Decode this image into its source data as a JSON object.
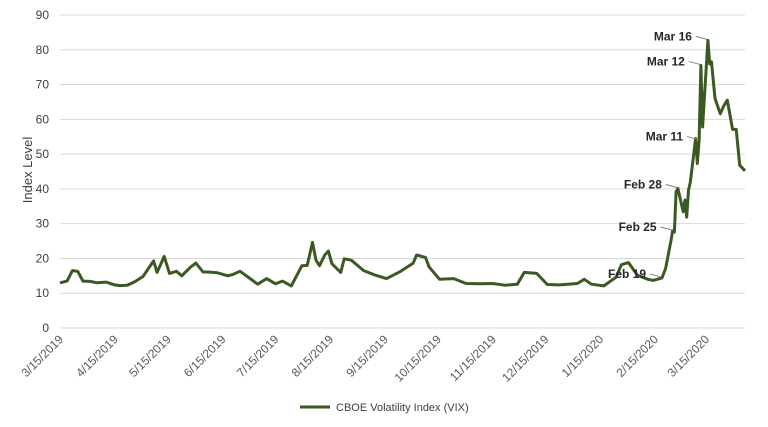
{
  "chart_data": {
    "type": "line",
    "ylabel": "Index Level",
    "xlabel": "",
    "ylim": [
      0,
      90
    ],
    "yticks": [
      0,
      10,
      20,
      30,
      40,
      50,
      60,
      70,
      80,
      90
    ],
    "grid": "horizontal",
    "legend_position": "bottom",
    "color": "#3b5a23",
    "x_ticks": [
      "3/15/2019",
      "4/15/2019",
      "5/15/2019",
      "6/15/2019",
      "7/15/2019",
      "8/15/2019",
      "9/15/2019",
      "10/15/2019",
      "11/15/2019",
      "12/15/2019",
      "1/15/2020",
      "2/15/2020",
      "3/15/2020"
    ],
    "series": [
      {
        "name": "CBOE Volatility Index (VIX)",
        "x": [
          "2019-03-15",
          "2019-03-19",
          "2019-03-22",
          "2019-03-25",
          "2019-03-28",
          "2019-04-01",
          "2019-04-05",
          "2019-04-10",
          "2019-04-15",
          "2019-04-18",
          "2019-04-22",
          "2019-04-26",
          "2019-05-01",
          "2019-05-07",
          "2019-05-09",
          "2019-05-13",
          "2019-05-16",
          "2019-05-20",
          "2019-05-23",
          "2019-05-28",
          "2019-05-31",
          "2019-06-04",
          "2019-06-07",
          "2019-06-12",
          "2019-06-18",
          "2019-06-21",
          "2019-06-25",
          "2019-07-01",
          "2019-07-05",
          "2019-07-10",
          "2019-07-15",
          "2019-07-19",
          "2019-07-24",
          "2019-07-30",
          "2019-08-02",
          "2019-08-05",
          "2019-08-07",
          "2019-08-09",
          "2019-08-12",
          "2019-08-14",
          "2019-08-16",
          "2019-08-21",
          "2019-08-23",
          "2019-08-27",
          "2019-09-03",
          "2019-09-09",
          "2019-09-16",
          "2019-09-24",
          "2019-10-01",
          "2019-10-03",
          "2019-10-08",
          "2019-10-10",
          "2019-10-16",
          "2019-10-24",
          "2019-10-31",
          "2019-11-08",
          "2019-11-15",
          "2019-11-22",
          "2019-11-29",
          "2019-12-03",
          "2019-12-10",
          "2019-12-16",
          "2019-12-23",
          "2020-01-02",
          "2020-01-06",
          "2020-01-10",
          "2020-01-17",
          "2020-01-24",
          "2020-01-27",
          "2020-01-31",
          "2020-02-05",
          "2020-02-11",
          "2020-02-14",
          "2020-02-19",
          "2020-02-21",
          "2020-02-24",
          "2020-02-25",
          "2020-02-26",
          "2020-02-27",
          "2020-02-28",
          "2020-03-02",
          "2020-03-03",
          "2020-03-04",
          "2020-03-05",
          "2020-03-06",
          "2020-03-09",
          "2020-03-10",
          "2020-03-11",
          "2020-03-12",
          "2020-03-13",
          "2020-03-16",
          "2020-03-17",
          "2020-03-18",
          "2020-03-20",
          "2020-03-23",
          "2020-03-25",
          "2020-03-27",
          "2020-03-30",
          "2020-04-01",
          "2020-04-03",
          "2020-04-06"
        ],
        "values": [
          13.0,
          13.5,
          16.5,
          16.3,
          13.5,
          13.4,
          13.0,
          13.2,
          12.4,
          12.2,
          12.3,
          13.2,
          14.8,
          19.3,
          16.0,
          20.6,
          15.7,
          16.3,
          15.0,
          17.5,
          18.7,
          16.1,
          16.1,
          15.9,
          15.0,
          15.4,
          16.3,
          14.1,
          12.6,
          14.2,
          12.7,
          13.5,
          12.1,
          17.9,
          18.0,
          24.6,
          19.5,
          17.9,
          21.0,
          22.1,
          18.5,
          16.0,
          19.9,
          19.5,
          16.5,
          15.3,
          14.2,
          16.3,
          18.6,
          21.0,
          20.3,
          17.6,
          14.0,
          14.2,
          12.8,
          12.7,
          12.8,
          12.3,
          12.6,
          16.0,
          15.7,
          12.5,
          12.4,
          12.8,
          14.0,
          12.6,
          12.1,
          14.6,
          18.2,
          18.8,
          15.2,
          14.0,
          13.7,
          14.4,
          17.1,
          25.0,
          27.9,
          27.6,
          39.2,
          40.1,
          33.4,
          36.8,
          31.9,
          39.6,
          41.9,
          54.5,
          47.3,
          53.9,
          75.5,
          57.8,
          82.7,
          75.9,
          76.5,
          66.0,
          61.6,
          63.9,
          65.5,
          57.1,
          57.1,
          46.8,
          45.2
        ]
      }
    ],
    "annotations": [
      {
        "label": "Mar 16",
        "date": "2020-03-16",
        "value": 82.7
      },
      {
        "label": "Mar 12",
        "date": "2020-03-12",
        "value": 75.5
      },
      {
        "label": "Mar 11",
        "date": "2020-03-11",
        "value": 53.9
      },
      {
        "label": "Feb 28",
        "date": "2020-02-28",
        "value": 40.1
      },
      {
        "label": "Feb 25",
        "date": "2020-02-25",
        "value": 27.9
      },
      {
        "label": "Feb 19",
        "date": "2020-02-19",
        "value": 14.4
      }
    ]
  }
}
